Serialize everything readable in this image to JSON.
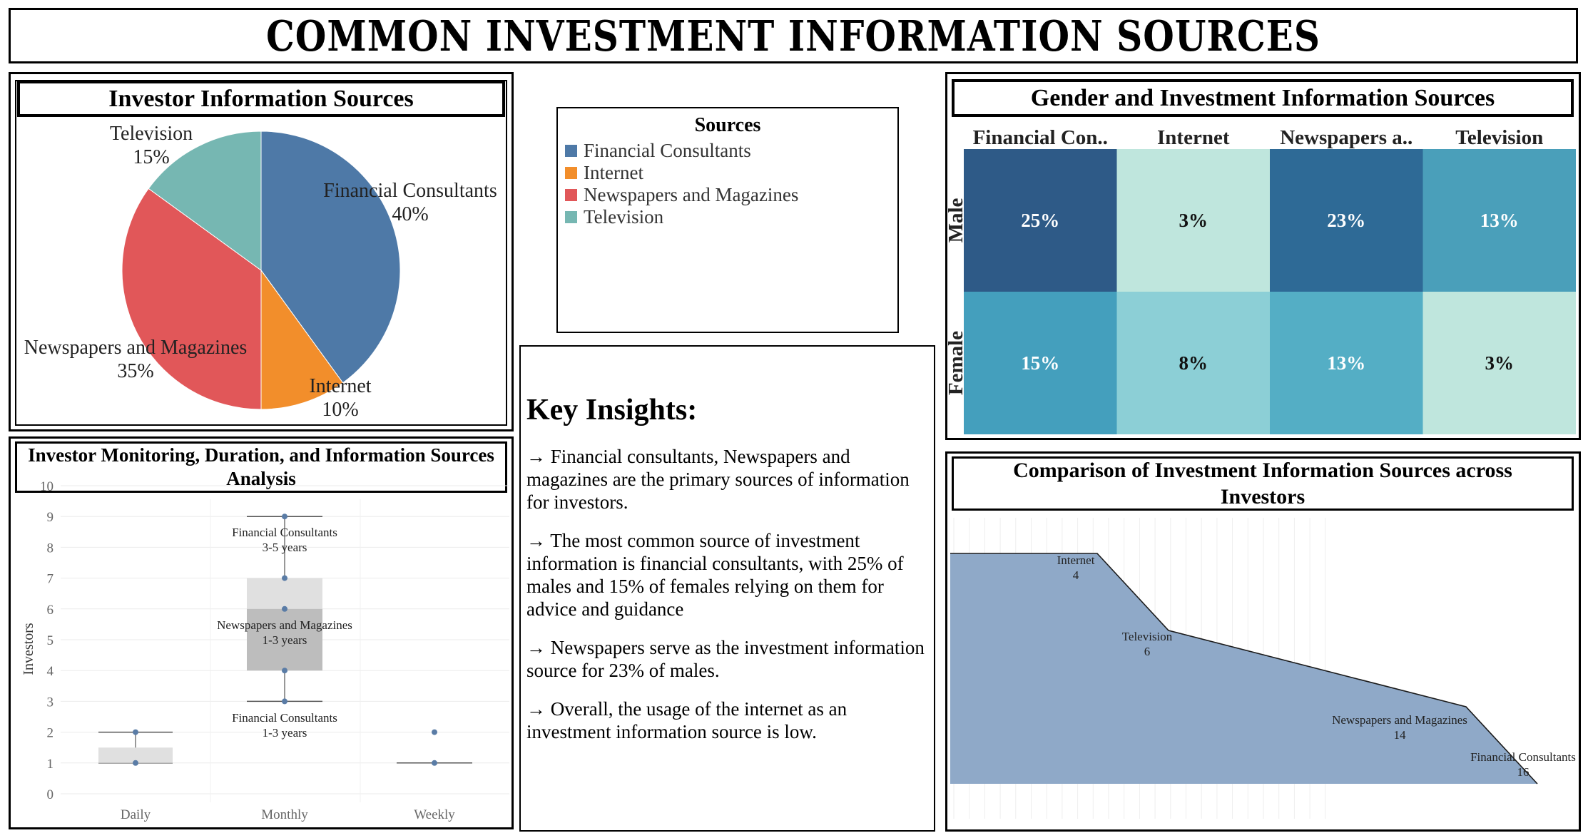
{
  "page_title": "COMMON INVESTMENT INFORMATION SOURCES",
  "pie": {
    "title": "Investor Information Sources"
  },
  "legend": {
    "title": "Sources",
    "items": [
      {
        "label": "Financial Consultants",
        "color": "#4e79a7"
      },
      {
        "label": "Internet",
        "color": "#f28e2b"
      },
      {
        "label": "Newspapers and Magazines",
        "color": "#e15759"
      },
      {
        "label": "Television",
        "color": "#76b7b2"
      }
    ]
  },
  "insights": {
    "heading": "Key Insights:",
    "points": [
      "→ Financial consultants, Newspapers and magazines are the primary sources of information for investors.",
      "→ The most common source of investment information is financial consultants, with 25% of males and 15% of females relying on them for advice and guidance",
      "→ Newspapers serve as the investment information source for 23% of males.",
      "→ Overall, the usage of the internet as an investment information source is low."
    ]
  },
  "heatmap": {
    "title": "Gender and Investment Information Sources"
  },
  "boxplot": {
    "title": "Investor Monitoring, Duration, and Information Sources Analysis"
  },
  "area": {
    "title": "Comparison of Investment Information Sources across Investors"
  },
  "chart_data": [
    {
      "id": "pie",
      "type": "pie",
      "title": "Investor Information Sources",
      "slices": [
        {
          "label": "Financial Consultants",
          "value": 40,
          "value_label": "40%",
          "color": "#4e79a7"
        },
        {
          "label": "Internet",
          "value": 10,
          "value_label": "10%",
          "color": "#f28e2b"
        },
        {
          "label": "Newspapers and Magazines",
          "value": 35,
          "value_label": "35%",
          "color": "#e15759"
        },
        {
          "label": "Television",
          "value": 15,
          "value_label": "15%",
          "color": "#76b7b2"
        }
      ]
    },
    {
      "id": "heatmap",
      "type": "heatmap",
      "title": "Gender and Investment Information Sources",
      "columns": [
        "Financial Con..",
        "Internet",
        "Newspapers a..",
        "Television"
      ],
      "rows": [
        "Male",
        "Female"
      ],
      "values": [
        [
          25,
          3,
          23,
          13
        ],
        [
          15,
          8,
          13,
          3
        ]
      ],
      "value_labels": [
        [
          "25%",
          "3%",
          "23%",
          "13%"
        ],
        [
          "15%",
          "8%",
          "13%",
          "3%"
        ]
      ],
      "colors": [
        [
          "#2e5a87",
          "#bfe6dd",
          "#2e6a96",
          "#4a9fba"
        ],
        [
          "#449fbd",
          "#8ccfd6",
          "#54aec5",
          "#bfe6dd"
        ]
      ]
    },
    {
      "id": "boxplot",
      "type": "box",
      "title": "Investor Monitoring, Duration, and Information Sources Analysis",
      "ylabel": "Investors",
      "xlabel": "",
      "ylim": [
        0,
        10
      ],
      "yticks": [
        "0",
        "1",
        "2",
        "3",
        "4",
        "5",
        "6",
        "7",
        "8",
        "9",
        "10"
      ],
      "categories": [
        "Daily",
        "Monthly",
        "Weekly"
      ],
      "boxes": [
        {
          "category": "Daily",
          "min": 1,
          "q1": 1,
          "median": 1.5,
          "q3": 1.5,
          "max": 2,
          "points": [
            1,
            2
          ]
        },
        {
          "category": "Monthly",
          "min": 3,
          "q1": 4,
          "median": 6,
          "q3": 7,
          "max": 9,
          "points": [
            3,
            4,
            6,
            7,
            9
          ]
        },
        {
          "category": "Weekly",
          "min": 1,
          "q1": 1,
          "median": 1,
          "q3": 1,
          "max": 1,
          "points": [
            1,
            2
          ]
        }
      ],
      "annotations": [
        {
          "line1": "Financial Consultants",
          "line2": "3-5 years",
          "category": "Monthly",
          "y": 9
        },
        {
          "line1": "Newspapers and Magazines",
          "line2": "1-3 years",
          "category": "Monthly",
          "y": 6
        },
        {
          "line1": "Financial Consultants",
          "line2": "1-3 years",
          "category": "Monthly",
          "y": 3
        }
      ]
    },
    {
      "id": "area",
      "type": "area",
      "title": "Comparison of Investment Information Sources across Investors",
      "color": "#8fa9c8",
      "points": [
        {
          "label": "Internet",
          "value": 4
        },
        {
          "label": "Television",
          "value": 6
        },
        {
          "label": "Newspapers and Magazines",
          "value": 14
        },
        {
          "label": "Financial Consultants",
          "value": 16
        }
      ]
    }
  ]
}
